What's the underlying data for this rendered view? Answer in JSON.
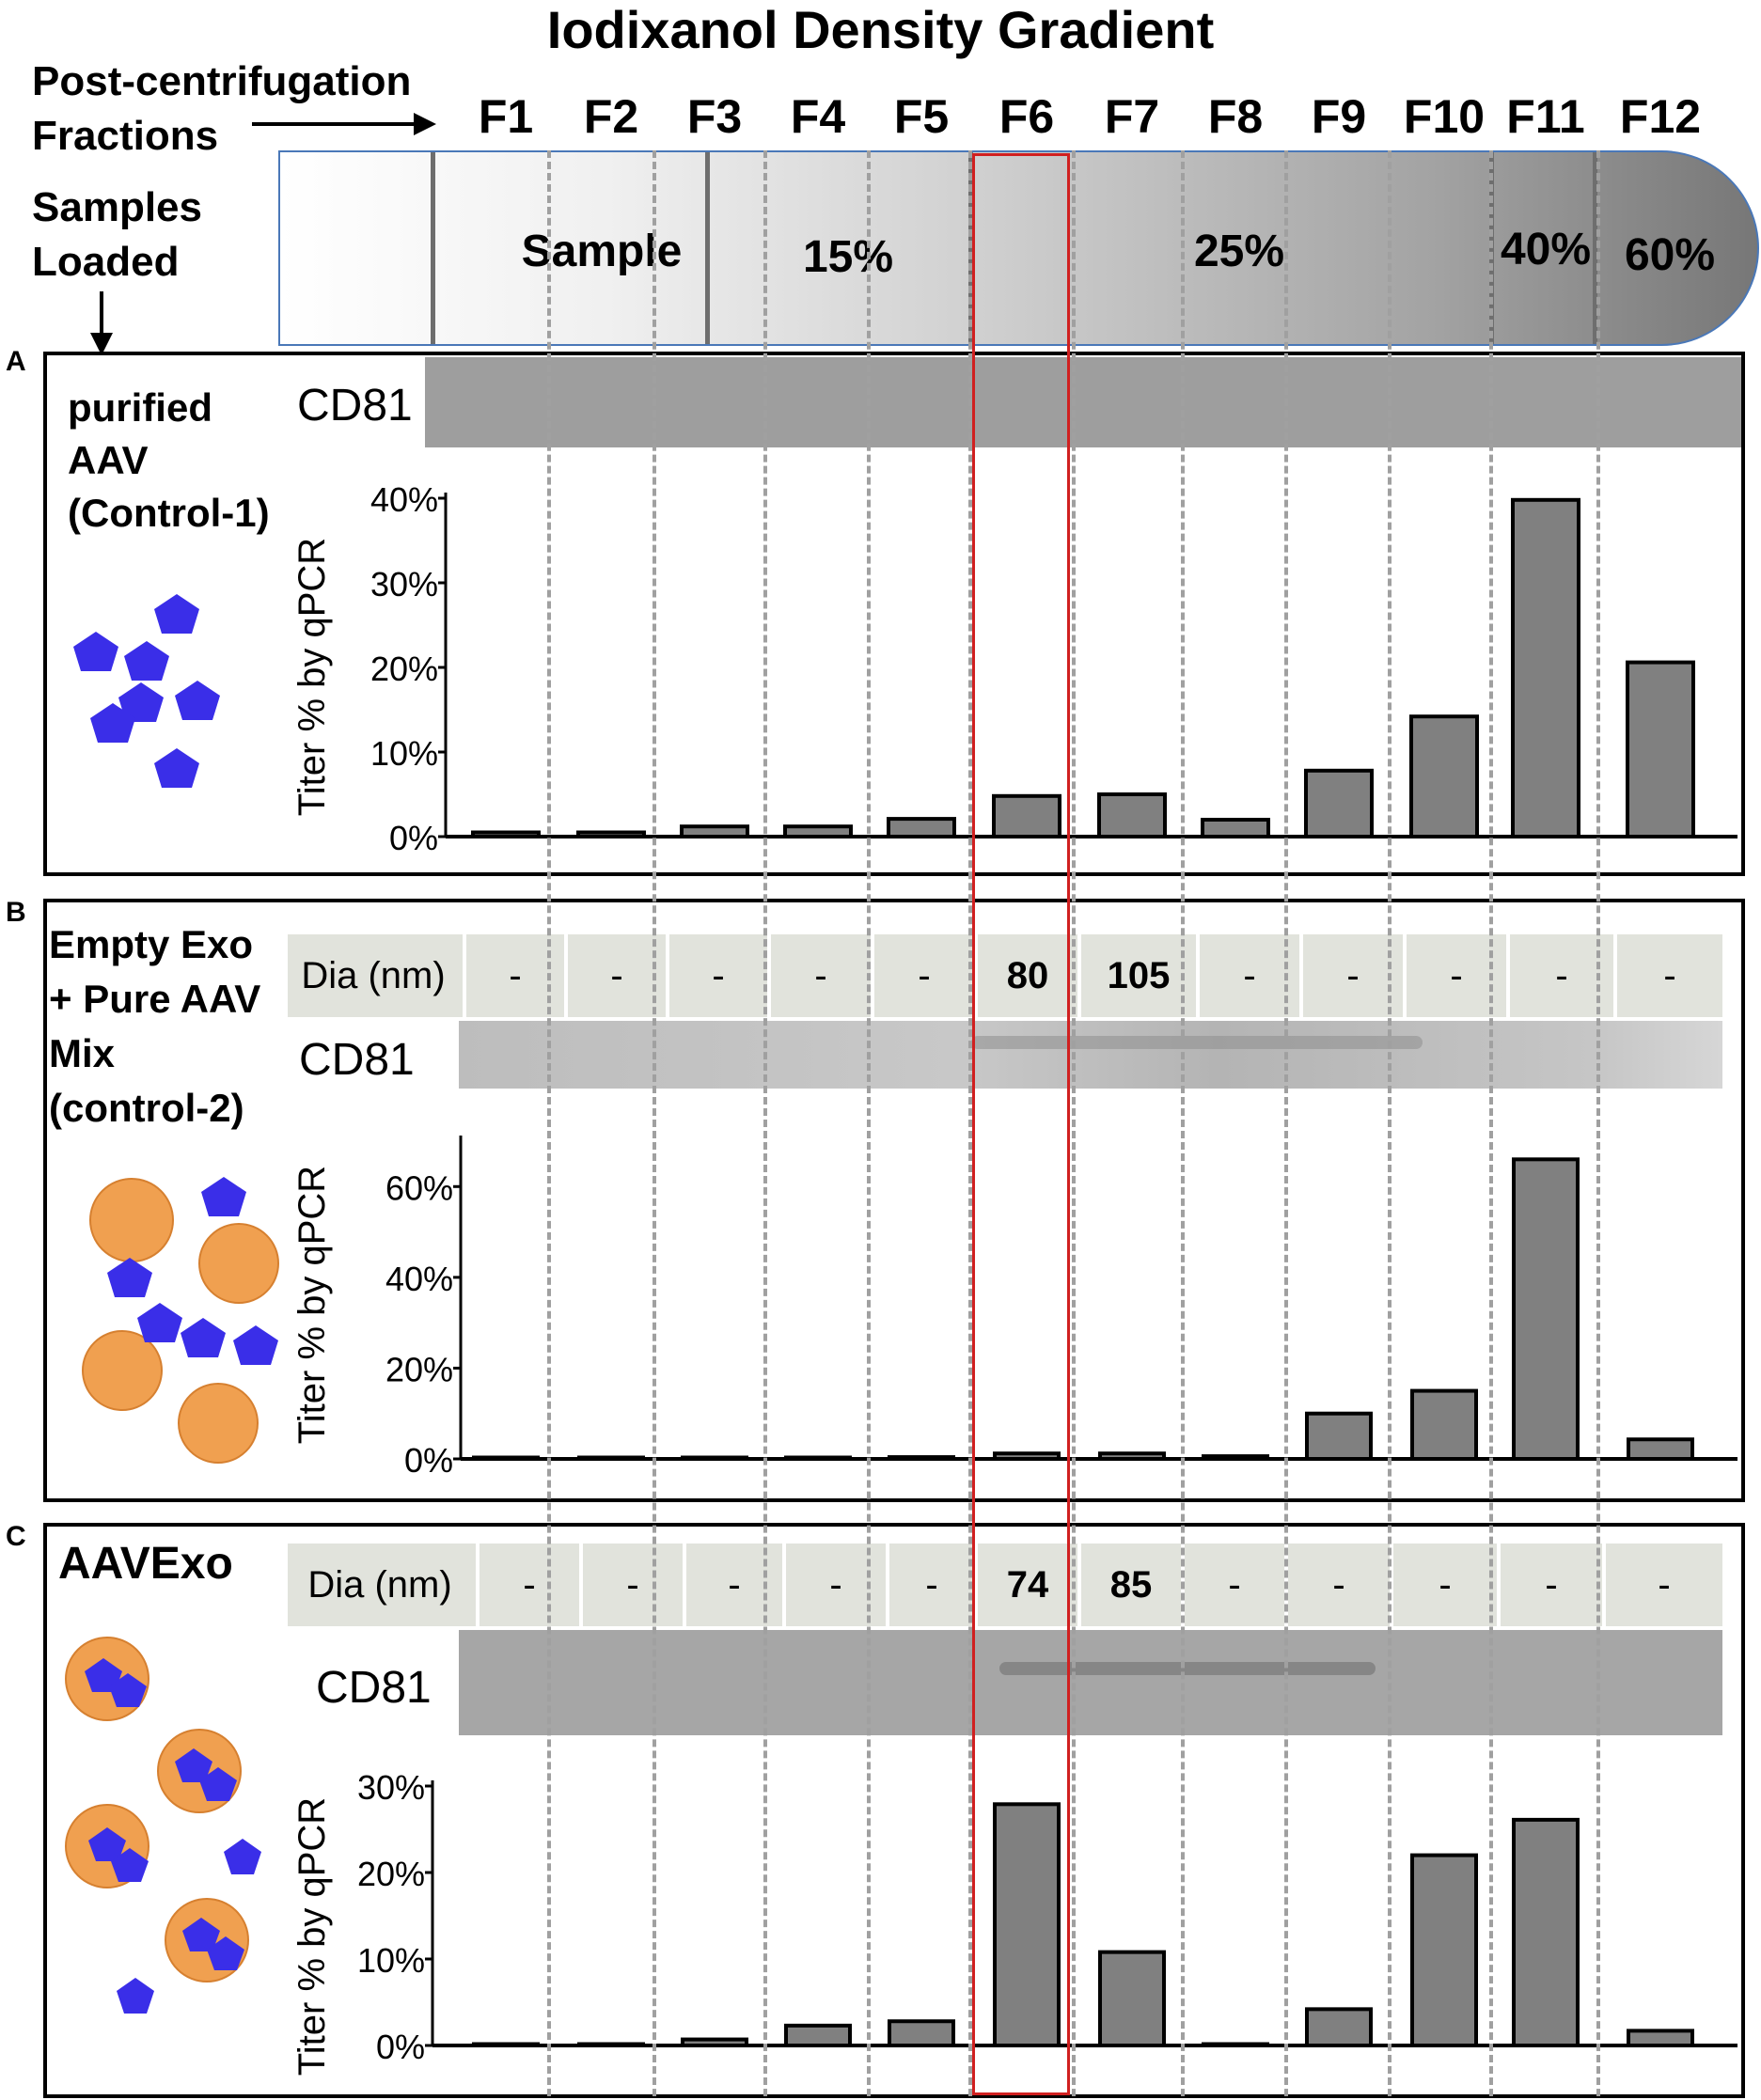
{
  "header": {
    "title": "Iodixanol Density Gradient",
    "post_label": [
      "Post-centrifugation",
      "Fractions"
    ],
    "samples_label": [
      "Samples",
      "Loaded"
    ],
    "fractions": [
      "F1",
      "F2",
      "F3",
      "F4",
      "F5",
      "F6",
      "F7",
      "F8",
      "F9",
      "F10",
      "F11",
      "F12"
    ],
    "zones": [
      "Sample",
      "15%",
      "25%",
      "40%",
      "60%"
    ]
  },
  "colors": {
    "bar_fill": "#808080",
    "highlight": "#d02020",
    "aav": "#3a2ee8",
    "exosome": "#f0a050"
  },
  "panels": [
    {
      "letter": "A",
      "label": [
        "purified",
        "AAV",
        "(Control-1)"
      ],
      "cd81_label": "CD81"
    },
    {
      "letter": "B",
      "label": [
        "Empty Exo",
        "+ Pure AAV",
        "Mix",
        "(control-2)"
      ],
      "cd81_label": "CD81",
      "dia_header": "Dia (nm)",
      "dia_values": [
        "-",
        "-",
        "-",
        "-",
        "-",
        "80",
        "105",
        "-",
        "-",
        "-",
        "-",
        "-"
      ]
    },
    {
      "letter": "C",
      "label": [
        "AAVExo"
      ],
      "cd81_label": "CD81",
      "dia_header": "Dia (nm)",
      "dia_values": [
        "-",
        "-",
        "-",
        "-",
        "-",
        "74",
        "85",
        "-",
        "-",
        "-",
        "-",
        "-"
      ]
    }
  ],
  "chart_data": [
    {
      "type": "bar",
      "panel": "A",
      "title": "",
      "xlabel": "",
      "ylabel": "Titer %  by qPCR",
      "categories": [
        "F1",
        "F2",
        "F3",
        "F4",
        "F5",
        "F6",
        "F7",
        "F8",
        "F9",
        "F10",
        "F11",
        "F12"
      ],
      "values": [
        0.5,
        0.5,
        1.2,
        1.2,
        2.1,
        4.8,
        5.0,
        2.0,
        7.8,
        14.2,
        39.8,
        20.6
      ],
      "ylim": [
        0,
        40
      ],
      "yticks": [
        "0%",
        "10%",
        "20%",
        "30%",
        "40%"
      ],
      "ytick_values": [
        0,
        10,
        20,
        30,
        40
      ]
    },
    {
      "type": "bar",
      "panel": "B",
      "title": "",
      "xlabel": "",
      "ylabel": "Titer %  by qPCR",
      "categories": [
        "F1",
        "F2",
        "F3",
        "F4",
        "F5",
        "F6",
        "F7",
        "F8",
        "F9",
        "F10",
        "F11",
        "F12"
      ],
      "values": [
        0.1,
        0.1,
        0.3,
        0.2,
        0.4,
        1.2,
        1.2,
        0.6,
        10.0,
        15.0,
        66.0,
        4.3
      ],
      "ylim": [
        0,
        70
      ],
      "yticks": [
        "0%",
        "20%",
        "40%",
        "60%"
      ],
      "ytick_values": [
        0,
        20,
        40,
        60
      ]
    },
    {
      "type": "bar",
      "panel": "C",
      "title": "",
      "xlabel": "",
      "ylabel": "Titer %  by qPCR",
      "categories": [
        "F1",
        "F2",
        "F3",
        "F4",
        "F5",
        "F6",
        "F7",
        "F8",
        "F9",
        "F10",
        "F11",
        "F12"
      ],
      "values": [
        0.0,
        0.1,
        0.7,
        2.3,
        2.8,
        27.9,
        10.8,
        0.1,
        4.2,
        22.0,
        26.1,
        1.7
      ],
      "ylim": [
        0,
        30
      ],
      "yticks": [
        "0%",
        "10%",
        "20%",
        "30%"
      ],
      "ytick_values": [
        0,
        10,
        20,
        30
      ]
    }
  ]
}
